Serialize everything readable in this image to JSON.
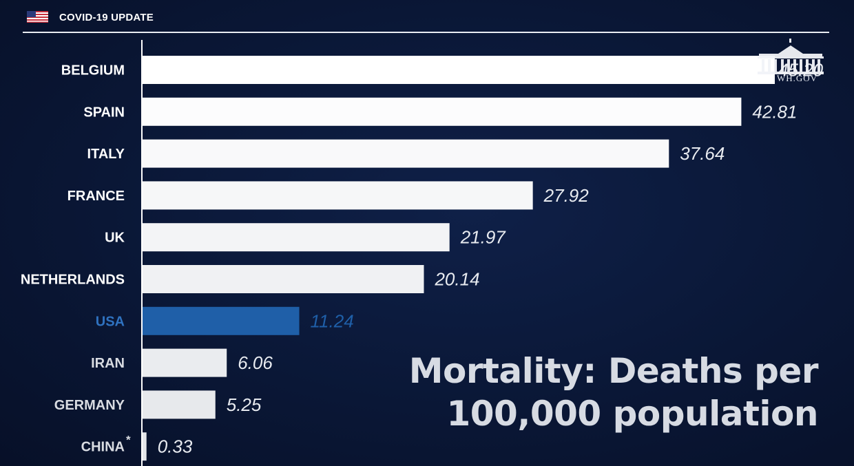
{
  "header": {
    "title": "COVID-19 UPDATE",
    "flag_icon": "us-flag-icon"
  },
  "watermark": {
    "text": "WH.GOV",
    "icon": "white-house-icon"
  },
  "chart_data": {
    "type": "bar",
    "orientation": "horizontal",
    "title": "Mortality: Deaths per 100,000 population",
    "title_lines": [
      "Mortality: Deaths per",
      "100,000 population"
    ],
    "categories": [
      "BELGIUM",
      "SPAIN",
      "ITALY",
      "FRANCE",
      "UK",
      "NETHERLANDS",
      "USA",
      "IRAN",
      "GERMANY",
      "CHINA"
    ],
    "values": [
      45.2,
      42.81,
      37.64,
      27.92,
      21.97,
      20.14,
      11.24,
      6.06,
      5.25,
      0.33
    ],
    "value_labels": [
      "45.20",
      "42.81",
      "37.64",
      "27.92",
      "21.97",
      "20.14",
      "11.24",
      "6.06",
      "5.25",
      "0.33"
    ],
    "annotations": {
      "CHINA": "*"
    },
    "highlight": "USA",
    "xlim": [
      0,
      45.2
    ],
    "colors": {
      "bar_top": "#ffffff",
      "bar_bottom": "#e4e6ea",
      "highlight": "#1f5fa8",
      "highlight_label": "#2f72c0",
      "label": "#ffffff",
      "label_muted": "#d9dce2",
      "axis": "#ffffff"
    }
  }
}
